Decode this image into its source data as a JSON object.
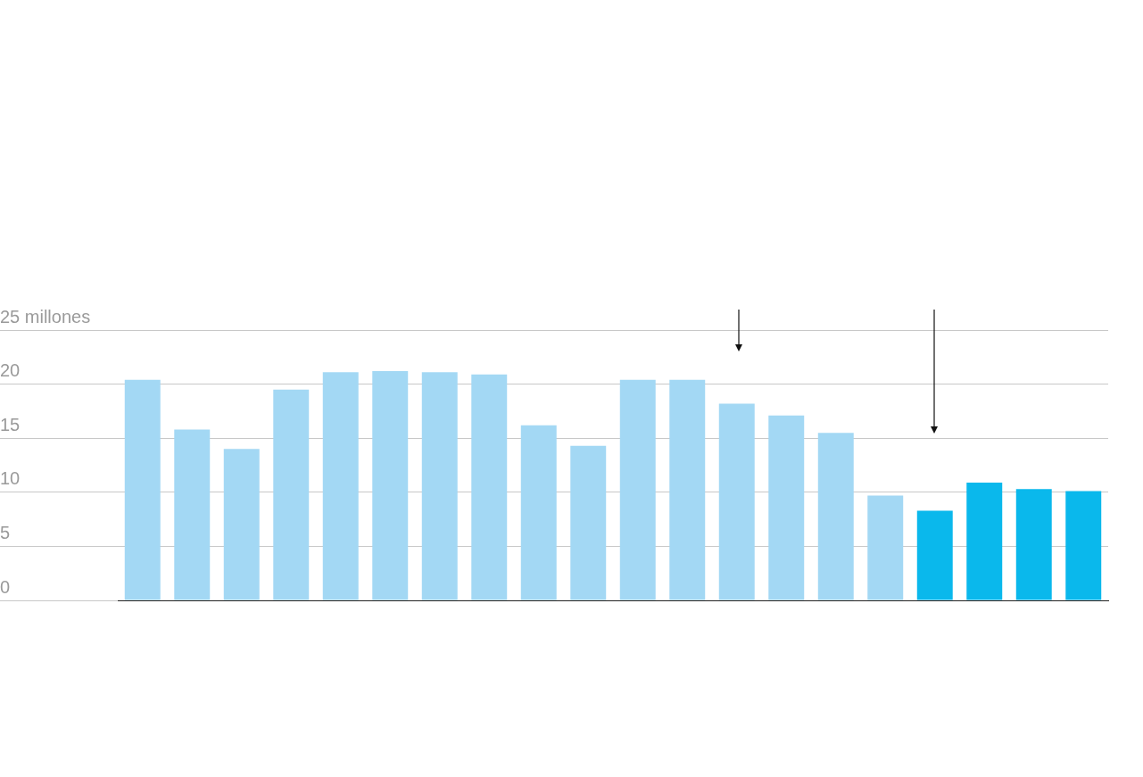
{
  "chart_data": {
    "type": "bar",
    "categories": [
      null,
      null,
      null,
      null,
      null,
      null,
      null,
      null,
      null,
      null,
      null,
      null,
      null,
      null,
      null,
      null,
      null,
      null,
      null,
      null
    ],
    "values": [
      20.4,
      15.8,
      14.0,
      19.5,
      21.1,
      21.2,
      21.1,
      20.9,
      16.2,
      14.3,
      20.4,
      20.4,
      18.2,
      17.1,
      15.5,
      9.7,
      8.3,
      10.9,
      10.3,
      10.1
    ],
    "colors": [
      "#a3d8f4",
      "#a3d8f4",
      "#a3d8f4",
      "#a3d8f4",
      "#a3d8f4",
      "#a3d8f4",
      "#a3d8f4",
      "#a3d8f4",
      "#a3d8f4",
      "#a3d8f4",
      "#a3d8f4",
      "#a3d8f4",
      "#a3d8f4",
      "#a3d8f4",
      "#a3d8f4",
      "#a3d8f4",
      "#0ab8ec",
      "#0ab8ec",
      "#0ab8ec",
      "#0ab8ec"
    ],
    "ylim": [
      0,
      25
    ],
    "yticks": [
      0,
      5,
      10,
      15,
      20,
      {
        "value": 25,
        "label": "25 millones"
      }
    ],
    "grid": "y",
    "tick_labels": "y"
  }
}
